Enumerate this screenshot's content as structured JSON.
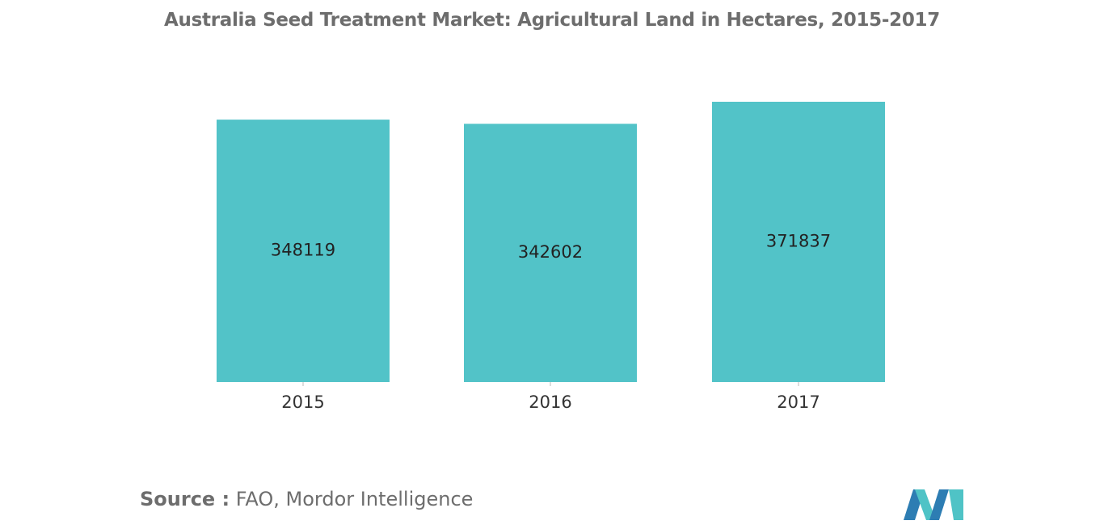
{
  "title": "Australia Seed Treatment Market: Agricultural Land in Hectares, 2015-2017",
  "source": {
    "prefix": "Source :",
    "text": "FAO, Mordor Intelligence"
  },
  "logo_icon": "mordor-intelligence-logo",
  "colors": {
    "bar": "#52c3c8",
    "title": "#6d6d6d",
    "logo_dark": "#2d7db3",
    "logo_light": "#4fc3c6"
  },
  "chart_data": {
    "type": "bar",
    "categories": [
      "2015",
      "2016",
      "2017"
    ],
    "values": [
      348119,
      342602,
      371837
    ],
    "data_labels": [
      "348119",
      "342602",
      "371837"
    ],
    "title": "Australia Seed Treatment Market: Agricultural Land in Hectares, 2015-2017",
    "xlabel": "",
    "ylabel": "",
    "ylim": [
      0,
      400000
    ],
    "grid": false,
    "legend": "none"
  }
}
